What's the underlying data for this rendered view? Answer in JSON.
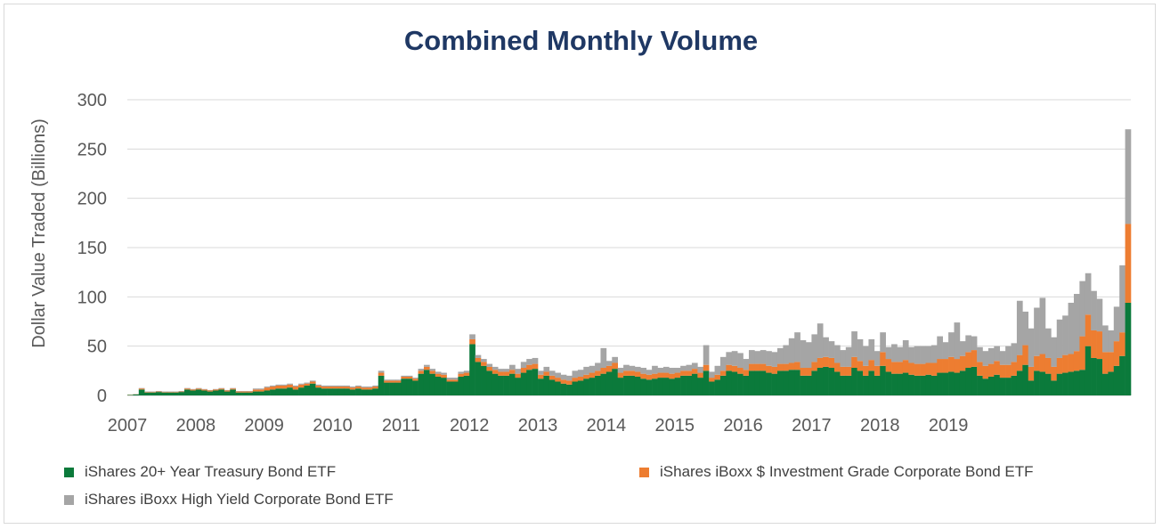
{
  "chart_data": {
    "type": "bar",
    "stacked": true,
    "title": "Combined Monthly Volume",
    "ylabel": "Dollar Value Traded (Billions)",
    "xlabel": "",
    "ylim": [
      0,
      300
    ],
    "yticks": [
      0,
      50,
      100,
      150,
      200,
      250,
      300
    ],
    "xticks": [
      "2007",
      "2008",
      "2009",
      "2010",
      "2011",
      "2012",
      "2013",
      "2014",
      "2015",
      "2016",
      "2017",
      "2018",
      "2019"
    ],
    "start": "2007-01",
    "series": [
      {
        "name": "iShares 20+ Year Treasury Bond ETF",
        "color": "#0b7a3b",
        "values": [
          0.5,
          1,
          6,
          3,
          3,
          3.5,
          3,
          3,
          3,
          3.5,
          6,
          5,
          6,
          5,
          4,
          5,
          6,
          4,
          6,
          3,
          3,
          3,
          4,
          4,
          5,
          6,
          7,
          7,
          8,
          6,
          8,
          10,
          12,
          8,
          7,
          7,
          7,
          7,
          7,
          6,
          7,
          6,
          6,
          7,
          20,
          13,
          13,
          13,
          17,
          17,
          15,
          22,
          26,
          22,
          19,
          18,
          14,
          14,
          19,
          20,
          52,
          34,
          30,
          25,
          22,
          20,
          20,
          22,
          18,
          23,
          26,
          27,
          17,
          20,
          16,
          14,
          12,
          11,
          14,
          15,
          17,
          18,
          20,
          22,
          24,
          27,
          18,
          20,
          20,
          19,
          17,
          16,
          17,
          18,
          18,
          17,
          18,
          20,
          20,
          22,
          18,
          25,
          14,
          16,
          20,
          25,
          24,
          22,
          20,
          25,
          25,
          25,
          23,
          22,
          25,
          25,
          26,
          26,
          20,
          20,
          25,
          28,
          29,
          28,
          24,
          20,
          20,
          28,
          25,
          20,
          25,
          20,
          30,
          24,
          22,
          22,
          23,
          21,
          20,
          20,
          21,
          20,
          23,
          23,
          24,
          23,
          25,
          28,
          29,
          20,
          17,
          19,
          21,
          18,
          18,
          20,
          25,
          31,
          15,
          25,
          24,
          22,
          15,
          22,
          23,
          24,
          25,
          26,
          50,
          38,
          37,
          22,
          24,
          30,
          40,
          94
        ]
      },
      {
        "name": "iShares iBoxx $ Investment Grade Corporate Bond ETF",
        "color": "#ed7d31",
        "values": [
          0.2,
          0.2,
          1,
          0.5,
          0.5,
          0.5,
          0.5,
          0.5,
          0.5,
          0.5,
          1,
          1,
          1,
          1,
          1,
          1,
          1,
          1,
          1,
          1,
          1,
          1,
          2,
          2,
          3,
          3,
          3,
          3,
          3,
          3,
          3,
          2,
          2,
          2,
          2,
          2,
          2,
          2,
          2,
          2,
          2,
          2,
          2,
          2,
          3,
          2,
          2,
          2,
          2,
          2,
          2,
          3,
          3,
          3,
          3,
          3,
          2,
          2,
          3,
          3,
          5,
          4,
          4,
          4,
          4,
          4,
          4,
          4,
          4,
          5,
          5,
          5,
          4,
          4,
          4,
          4,
          4,
          4,
          4,
          4,
          4,
          5,
          5,
          6,
          6,
          6,
          5,
          5,
          5,
          5,
          5,
          5,
          5,
          5,
          5,
          5,
          5,
          5,
          5,
          5,
          5,
          6,
          4,
          5,
          5,
          6,
          6,
          6,
          6,
          7,
          7,
          7,
          7,
          7,
          7,
          7,
          7,
          8,
          8,
          8,
          9,
          10,
          10,
          10,
          9,
          9,
          9,
          11,
          10,
          10,
          11,
          10,
          14,
          13,
          12,
          12,
          13,
          12,
          12,
          12,
          12,
          13,
          14,
          14,
          15,
          14,
          15,
          16,
          17,
          14,
          13,
          13,
          14,
          13,
          13,
          14,
          16,
          20,
          14,
          15,
          18,
          16,
          14,
          16,
          18,
          18,
          20,
          34,
          32,
          28,
          28,
          22,
          20,
          25,
          24,
          80
        ]
      },
      {
        "name": "iShares iBoxx High Yield Corporate Bond ETF",
        "color": "#a5a5a5",
        "values": [
          0,
          0.2,
          0.5,
          0.5,
          0.5,
          0.5,
          0.5,
          0.5,
          0.5,
          0.5,
          0.5,
          0.5,
          0.5,
          0.5,
          0.5,
          0.5,
          0.5,
          0.5,
          0.5,
          0.5,
          0.5,
          0.5,
          1,
          1,
          1,
          1,
          1,
          1,
          1,
          1,
          1,
          1,
          1,
          1,
          1,
          1,
          1,
          1,
          1,
          1,
          1,
          1,
          1,
          1,
          2,
          1,
          1,
          1,
          1,
          1,
          1,
          2,
          2,
          2,
          2,
          2,
          2,
          2,
          2,
          2,
          5,
          3,
          3,
          3,
          3,
          3,
          3,
          5,
          5,
          6,
          6,
          6,
          4,
          5,
          5,
          5,
          5,
          5,
          7,
          7,
          8,
          7,
          8,
          20,
          5,
          6,
          5,
          6,
          5,
          5,
          6,
          5,
          8,
          5,
          6,
          6,
          5,
          5,
          6,
          6,
          6,
          20,
          6,
          9,
          14,
          13,
          15,
          15,
          11,
          14,
          13,
          14,
          15,
          15,
          16,
          19,
          25,
          30,
          28,
          26,
          28,
          35,
          20,
          17,
          18,
          17,
          20,
          26,
          22,
          20,
          21,
          15,
          20,
          12,
          18,
          15,
          20,
          16,
          18,
          18,
          17,
          18,
          23,
          17,
          25,
          37,
          15,
          17,
          14,
          15,
          15,
          16,
          15,
          14,
          19,
          19,
          55,
          34,
          39,
          49,
          57,
          30,
          30,
          39,
          40,
          52,
          58,
          56,
          42,
          40,
          33,
          27,
          22,
          35,
          68,
          96
        ]
      }
    ]
  }
}
